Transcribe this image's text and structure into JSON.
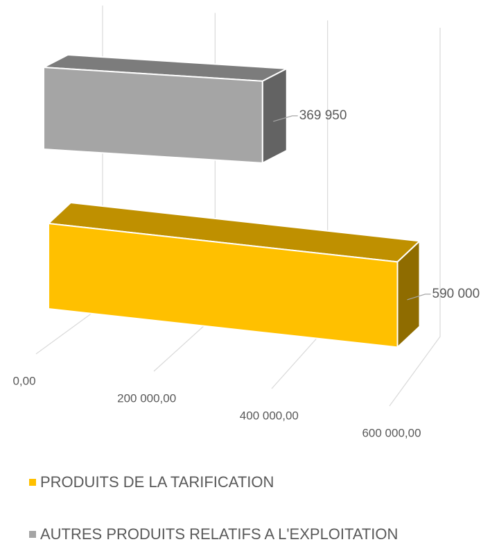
{
  "chart_data": {
    "type": "bar",
    "horizontal": true,
    "series": [
      {
        "name": "PRODUITS DE LA TARIFICATION",
        "color": "#FFC000",
        "values": [
          590000
        ],
        "value_labels": [
          "590 000"
        ]
      },
      {
        "name": "AUTRES PRODUITS RELATIFS A L'EXPLOITATION",
        "color": "#A5A5A5",
        "values": [
          369950
        ],
        "value_labels": [
          "369 950"
        ]
      }
    ],
    "xlim": [
      0,
      600000
    ],
    "xticks": [
      {
        "value": 0,
        "label": "0,00"
      },
      {
        "value": 200000,
        "label": "200 000,00"
      },
      {
        "value": 400000,
        "label": "400 000,00"
      },
      {
        "value": 600000,
        "label": "600 000,00"
      }
    ],
    "grid": true
  }
}
